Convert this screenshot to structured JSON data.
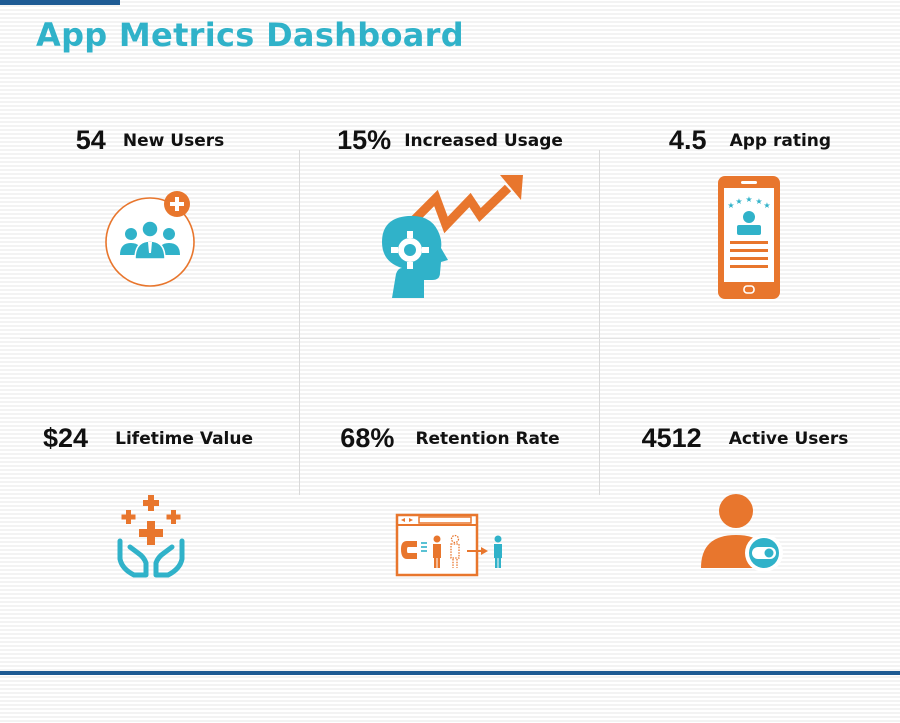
{
  "title": "App Metrics Dashboard",
  "colors": {
    "accent_teal": "#30b2c9",
    "accent_orange": "#e8762d",
    "brand_blue": "#1d5a93"
  },
  "metrics": [
    {
      "value": "54",
      "label": "New Users",
      "icon": "group-add-icon"
    },
    {
      "value": "15%",
      "label": "Increased Usage",
      "icon": "head-gear-trend-icon"
    },
    {
      "value": "4.5",
      "label": "App rating",
      "icon": "phone-rating-icon"
    },
    {
      "value": "$24",
      "label": "Lifetime Value",
      "icon": "hands-plus-icon"
    },
    {
      "value": "68%",
      "label": "Retention Rate",
      "icon": "magnet-retention-icon"
    },
    {
      "value": "4512",
      "label": "Active Users",
      "icon": "active-user-icon"
    }
  ]
}
